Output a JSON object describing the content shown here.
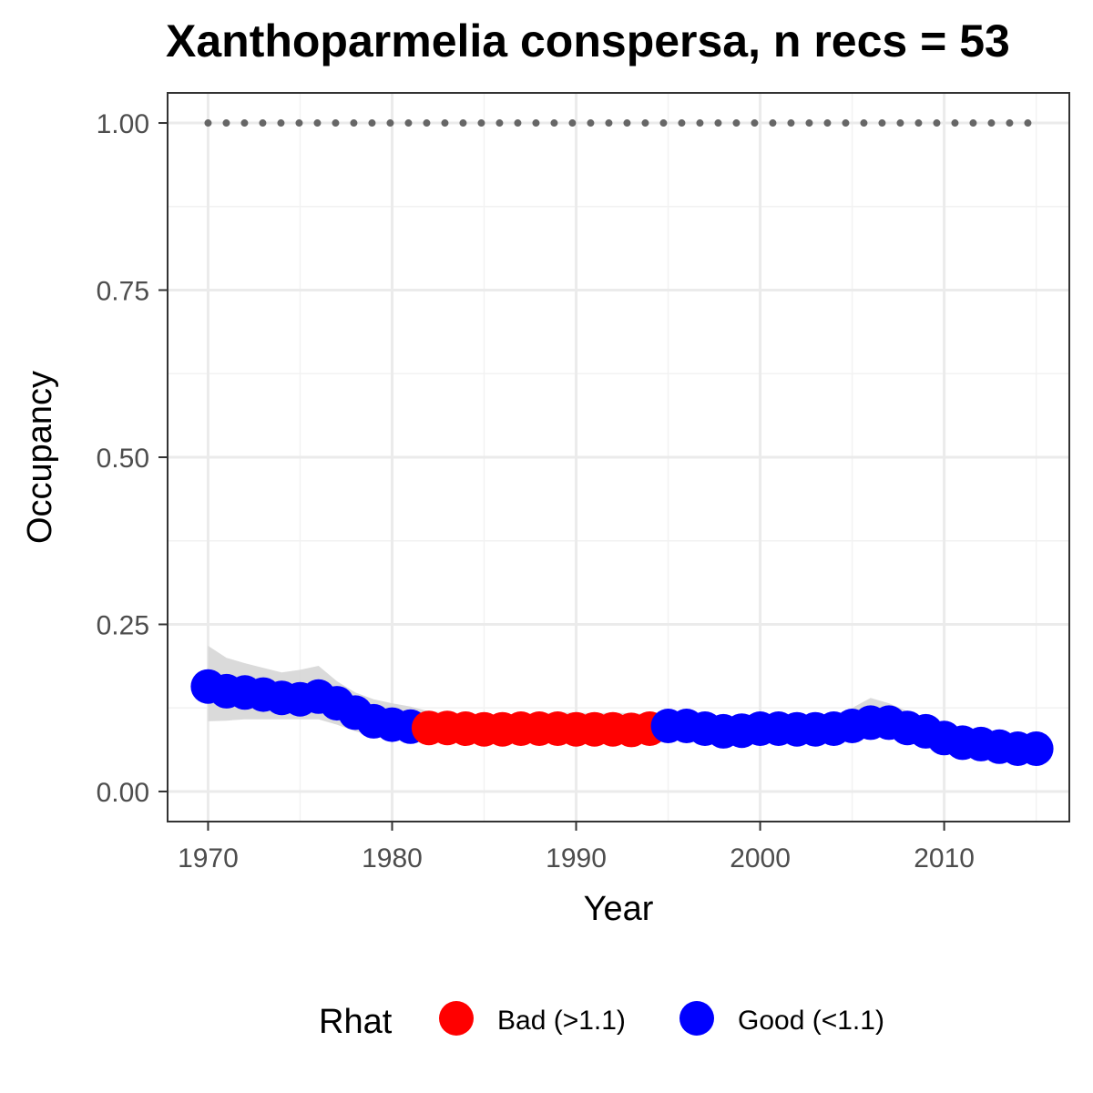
{
  "chart_data": {
    "type": "line",
    "title": "Xanthoparmelia conspersa, n recs = 53",
    "xlabel": "Year",
    "ylabel": "Occupancy",
    "xlim": [
      1967.8,
      2016.8
    ],
    "ylim": [
      -0.045,
      1.045
    ],
    "xticks": [
      1970,
      1980,
      1990,
      2000,
      2010
    ],
    "xtick_labels": [
      "1970",
      "1980",
      "1990",
      "2000",
      "2010"
    ],
    "yticks": [
      0,
      0.25,
      0.5,
      0.75,
      1
    ],
    "ytick_labels": [
      "0.00",
      "0.25",
      "0.50",
      "0.75",
      "1.00"
    ],
    "grid": true,
    "legend": {
      "title": "Rhat",
      "position": "bottom",
      "entries": [
        {
          "label": "Bad (>1.1)",
          "color": "#ff0000"
        },
        {
          "label": "Good (<1.1)",
          "color": "#0000ff"
        }
      ]
    },
    "colors": {
      "bad": "#ff0000",
      "good": "#0000ff",
      "ribbon": "#d3d3d3",
      "reference": "#666666"
    },
    "reference_line": {
      "y": 1.0,
      "style": "dotted",
      "x": [
        1970,
        2015
      ]
    },
    "x": [
      1970,
      1971,
      1972,
      1973,
      1974,
      1975,
      1976,
      1977,
      1978,
      1979,
      1980,
      1981,
      1982,
      1983,
      1984,
      1985,
      1986,
      1987,
      1988,
      1989,
      1990,
      1991,
      1992,
      1993,
      1994,
      1995,
      1996,
      1997,
      1998,
      1999,
      2000,
      2001,
      2002,
      2003,
      2004,
      2005,
      2006,
      2007,
      2008,
      2009,
      2010,
      2011,
      2012,
      2013,
      2014,
      2015
    ],
    "occupancy": [
      0.157,
      0.15,
      0.148,
      0.145,
      0.14,
      0.138,
      0.142,
      0.132,
      0.118,
      0.105,
      0.1,
      0.097,
      0.095,
      0.095,
      0.094,
      0.093,
      0.093,
      0.094,
      0.094,
      0.094,
      0.093,
      0.093,
      0.093,
      0.092,
      0.094,
      0.098,
      0.098,
      0.094,
      0.09,
      0.091,
      0.094,
      0.094,
      0.093,
      0.093,
      0.094,
      0.098,
      0.103,
      0.103,
      0.095,
      0.09,
      0.08,
      0.073,
      0.071,
      0.067,
      0.064,
      0.064
    ],
    "lower": [
      0.105,
      0.106,
      0.108,
      0.108,
      0.108,
      0.108,
      0.108,
      0.1,
      0.09,
      0.083,
      0.078,
      0.075,
      0.077,
      0.078,
      0.078,
      0.078,
      0.078,
      0.078,
      0.078,
      0.078,
      0.078,
      0.078,
      0.078,
      0.078,
      0.078,
      0.08,
      0.08,
      0.077,
      0.074,
      0.075,
      0.078,
      0.078,
      0.078,
      0.078,
      0.078,
      0.08,
      0.085,
      0.086,
      0.08,
      0.074,
      0.065,
      0.058,
      0.056,
      0.052,
      0.049,
      0.049
    ],
    "upper": [
      0.218,
      0.2,
      0.192,
      0.185,
      0.178,
      0.182,
      0.188,
      0.165,
      0.148,
      0.138,
      0.132,
      0.127,
      0.12,
      0.118,
      0.117,
      0.116,
      0.115,
      0.116,
      0.117,
      0.118,
      0.118,
      0.117,
      0.118,
      0.117,
      0.116,
      0.117,
      0.116,
      0.112,
      0.108,
      0.108,
      0.11,
      0.111,
      0.11,
      0.11,
      0.114,
      0.125,
      0.14,
      0.132,
      0.12,
      0.11,
      0.097,
      0.091,
      0.088,
      0.083,
      0.079,
      0.079
    ],
    "rhat_status": [
      "good",
      "good",
      "good",
      "good",
      "good",
      "good",
      "good",
      "good",
      "good",
      "good",
      "good",
      "good",
      "bad",
      "bad",
      "bad",
      "bad",
      "bad",
      "bad",
      "bad",
      "bad",
      "bad",
      "bad",
      "bad",
      "bad",
      "bad",
      "good",
      "good",
      "good",
      "good",
      "good",
      "good",
      "good",
      "good",
      "good",
      "good",
      "good",
      "good",
      "good",
      "good",
      "good",
      "good",
      "good",
      "good",
      "good",
      "good",
      "good"
    ]
  }
}
